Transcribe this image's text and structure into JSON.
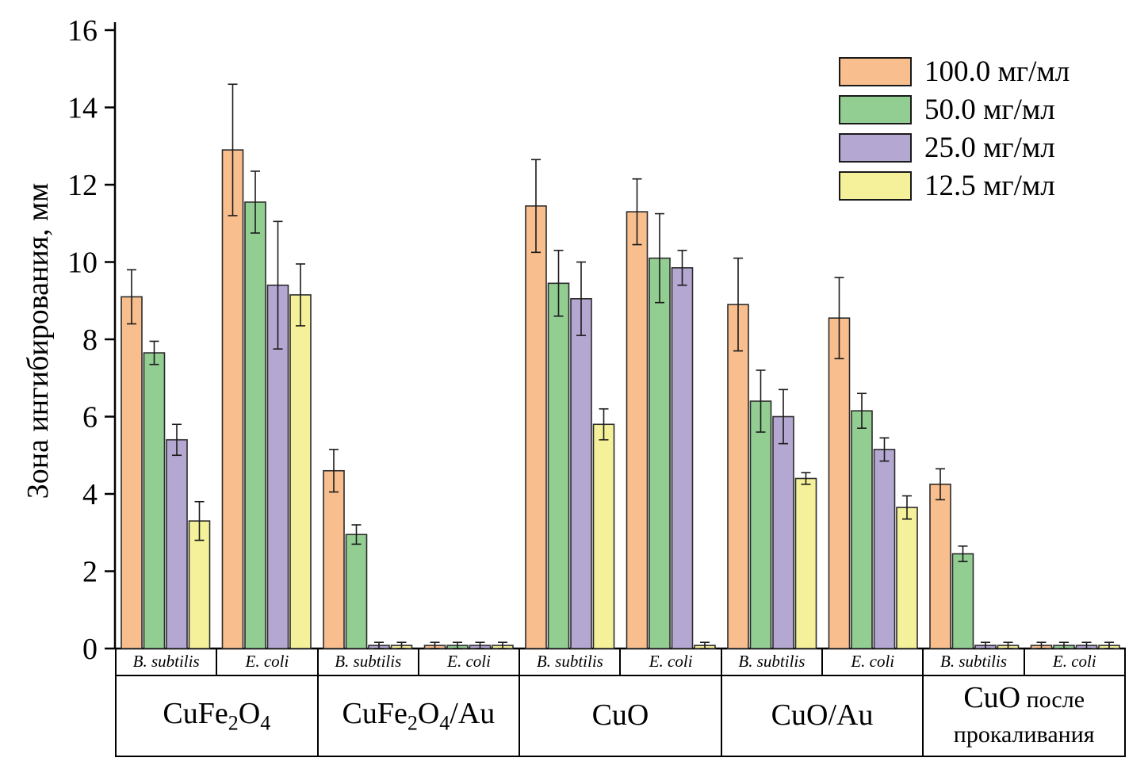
{
  "chart_data": {
    "type": "bar",
    "title": "",
    "ylabel": "Зона ингибирования, мм",
    "ylim": [
      0,
      16
    ],
    "yticks": [
      0,
      2,
      4,
      6,
      8,
      10,
      12,
      14,
      16
    ],
    "grid": false,
    "legend_position": "top-right",
    "legend": [
      {
        "label": "100.0 мг/мл",
        "color": "#F8BE8E"
      },
      {
        "label": "50.0 мг/мл",
        "color": "#92CD92"
      },
      {
        "label": "25.0 мг/мл",
        "color": "#B4A7D2"
      },
      {
        "label": "12.5 мг/мл",
        "color": "#F5F19A"
      }
    ],
    "series_names": [
      "100.0 мг/мл",
      "50.0 мг/мл",
      "25.0 мг/мл",
      "12.5 мг/мл"
    ],
    "groups": [
      {
        "label_parts": [
          {
            "t": "CuFe"
          },
          {
            "t": "2",
            "sub": true
          },
          {
            "t": "O"
          },
          {
            "t": "4",
            "sub": true
          }
        ],
        "label_text": "CuFe2O4",
        "subgroups": [
          {
            "organism": "B. subtilis",
            "values": [
              9.1,
              7.65,
              5.4,
              3.3
            ],
            "errors": [
              0.7,
              0.3,
              0.4,
              0.5
            ]
          },
          {
            "organism": "E. coli",
            "values": [
              12.9,
              11.55,
              9.4,
              9.15
            ],
            "errors": [
              1.7,
              0.8,
              1.65,
              0.8
            ]
          }
        ]
      },
      {
        "label_parts": [
          {
            "t": "CuFe"
          },
          {
            "t": "2",
            "sub": true
          },
          {
            "t": "O"
          },
          {
            "t": "4",
            "sub": true
          },
          {
            "t": "/Au"
          }
        ],
        "label_text": "CuFe2O4/Au",
        "subgroups": [
          {
            "organism": "B. subtilis",
            "values": [
              4.6,
              2.95,
              0.08,
              0.08
            ],
            "errors": [
              0.55,
              0.25,
              0.08,
              0.08
            ]
          },
          {
            "organism": "E. coli",
            "values": [
              0.08,
              0.08,
              0.08,
              0.08
            ],
            "errors": [
              0.08,
              0.08,
              0.08,
              0.08
            ]
          }
        ]
      },
      {
        "label_parts": [
          {
            "t": "CuO"
          }
        ],
        "label_text": "CuO",
        "subgroups": [
          {
            "organism": "B. subtilis",
            "values": [
              11.45,
              9.45,
              9.05,
              5.8
            ],
            "errors": [
              1.2,
              0.85,
              0.95,
              0.4
            ]
          },
          {
            "organism": "E. coli",
            "values": [
              11.3,
              10.1,
              9.85,
              0.08
            ],
            "errors": [
              0.85,
              1.15,
              0.45,
              0.08
            ]
          }
        ]
      },
      {
        "label_parts": [
          {
            "t": "CuO/Au"
          }
        ],
        "label_text": "CuO/Au",
        "subgroups": [
          {
            "organism": "B. subtilis",
            "values": [
              8.9,
              6.4,
              6.0,
              4.4
            ],
            "errors": [
              1.2,
              0.8,
              0.7,
              0.15
            ]
          },
          {
            "organism": "E. coli",
            "values": [
              8.55,
              6.15,
              5.15,
              3.65
            ],
            "errors": [
              1.05,
              0.45,
              0.3,
              0.3
            ]
          }
        ]
      },
      {
        "label_parts": [
          {
            "t": "CuO"
          },
          {
            "t": " после прокаливания",
            "small": true
          }
        ],
        "label_text": "CuO после прокаливания",
        "subgroups": [
          {
            "organism": "B. subtilis",
            "values": [
              4.25,
              2.45,
              0.08,
              0.08
            ],
            "errors": [
              0.4,
              0.2,
              0.08,
              0.08
            ]
          },
          {
            "organism": "E. coli",
            "values": [
              0.08,
              0.08,
              0.08,
              0.08
            ],
            "errors": [
              0.08,
              0.08,
              0.08,
              0.08
            ]
          }
        ]
      }
    ],
    "bar_border_color": "#2b2b2b",
    "error_bar_color": "#1a1a1a",
    "axis_color": "#000000"
  }
}
